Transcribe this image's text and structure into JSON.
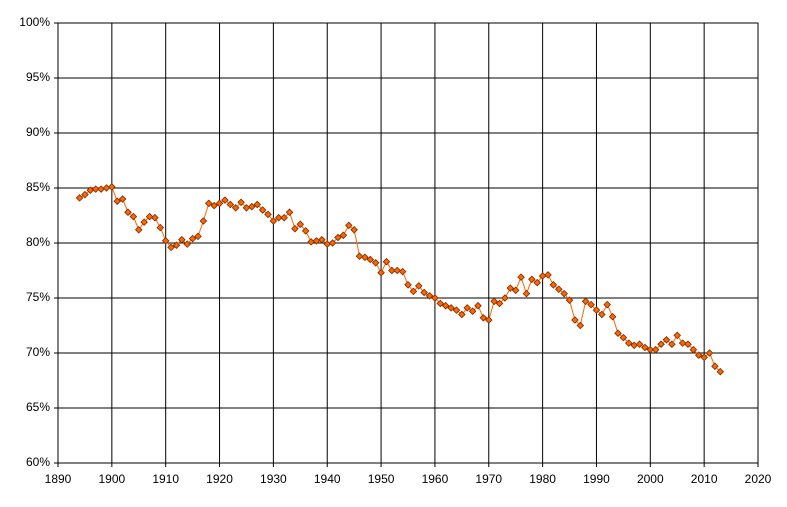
{
  "chart_data": {
    "type": "line",
    "x": [
      1894,
      1895,
      1896,
      1897,
      1898,
      1899,
      1900,
      1901,
      1902,
      1903,
      1904,
      1905,
      1906,
      1907,
      1908,
      1909,
      1910,
      1911,
      1912,
      1913,
      1914,
      1915,
      1916,
      1917,
      1918,
      1919,
      1920,
      1921,
      1922,
      1923,
      1924,
      1925,
      1926,
      1927,
      1928,
      1929,
      1930,
      1931,
      1932,
      1933,
      1934,
      1935,
      1936,
      1937,
      1938,
      1939,
      1940,
      1941,
      1942,
      1943,
      1944,
      1945,
      1946,
      1947,
      1948,
      1949,
      1950,
      1951,
      1952,
      1953,
      1954,
      1955,
      1956,
      1957,
      1958,
      1959,
      1960,
      1961,
      1962,
      1963,
      1964,
      1965,
      1966,
      1967,
      1968,
      1969,
      1970,
      1971,
      1972,
      1973,
      1974,
      1975,
      1976,
      1977,
      1978,
      1979,
      1980,
      1981,
      1982,
      1983,
      1984,
      1985,
      1986,
      1987,
      1988,
      1989,
      1990,
      1991,
      1992,
      1993,
      1994,
      1995,
      1996,
      1997,
      1998,
      1999,
      2000,
      2001,
      2002,
      2003,
      2004,
      2005,
      2006,
      2007,
      2008,
      2009,
      2010,
      2011,
      2012,
      2013
    ],
    "series": [
      {
        "color": "#ff6600",
        "marker_color": "#ff6600",
        "marker_edge": "#7a2a00",
        "values": [
          84.1,
          84.4,
          84.8,
          84.9,
          84.9,
          85.0,
          85.1,
          83.8,
          84.0,
          82.8,
          82.4,
          81.2,
          81.9,
          82.4,
          82.3,
          81.4,
          80.2,
          79.6,
          79.8,
          80.3,
          79.9,
          80.4,
          80.6,
          82.0,
          83.6,
          83.4,
          83.6,
          83.9,
          83.5,
          83.2,
          83.7,
          83.2,
          83.3,
          83.5,
          83.0,
          82.6,
          82.0,
          82.3,
          82.3,
          82.8,
          81.3,
          81.7,
          81.1,
          80.1,
          80.2,
          80.3,
          79.9,
          80.0,
          80.5,
          80.7,
          81.6,
          81.2,
          78.8,
          78.7,
          78.5,
          78.2,
          77.3,
          78.3,
          77.5,
          77.5,
          77.4,
          76.2,
          75.6,
          76.1,
          75.5,
          75.2,
          75.0,
          74.5,
          74.3,
          74.1,
          73.9,
          73.5,
          74.1,
          73.8,
          74.3,
          73.2,
          73.0,
          74.7,
          74.5,
          75.0,
          75.9,
          75.7,
          76.9,
          75.4,
          76.7,
          76.4,
          77.0,
          77.1,
          76.2,
          75.8,
          75.4,
          74.8,
          73.0,
          72.5,
          74.7,
          74.4,
          73.9,
          73.5,
          74.4,
          73.3,
          71.8,
          71.4,
          70.9,
          70.7,
          70.8,
          70.5,
          70.3,
          70.3,
          70.8,
          71.2,
          70.8,
          71.6,
          70.9,
          70.8,
          70.3,
          69.8,
          69.6,
          70.0,
          68.8,
          68.3
        ]
      }
    ],
    "xlim": [
      1890,
      2020
    ],
    "xticks": [
      1890,
      1900,
      1910,
      1920,
      1930,
      1940,
      1950,
      1960,
      1970,
      1980,
      1990,
      2000,
      2010,
      2020
    ],
    "ylim": [
      60,
      100
    ],
    "yticks": [
      {
        "value": 60,
        "label": "60%"
      },
      {
        "value": 65,
        "label": "65%"
      },
      {
        "value": 70,
        "label": "70%"
      },
      {
        "value": 75,
        "label": "75%"
      },
      {
        "value": 80,
        "label": "80%"
      },
      {
        "value": 85,
        "label": "85%"
      },
      {
        "value": 90,
        "label": "90%"
      },
      {
        "value": 95,
        "label": "95%"
      },
      {
        "value": 100,
        "label": "100%"
      }
    ],
    "grid": true
  }
}
